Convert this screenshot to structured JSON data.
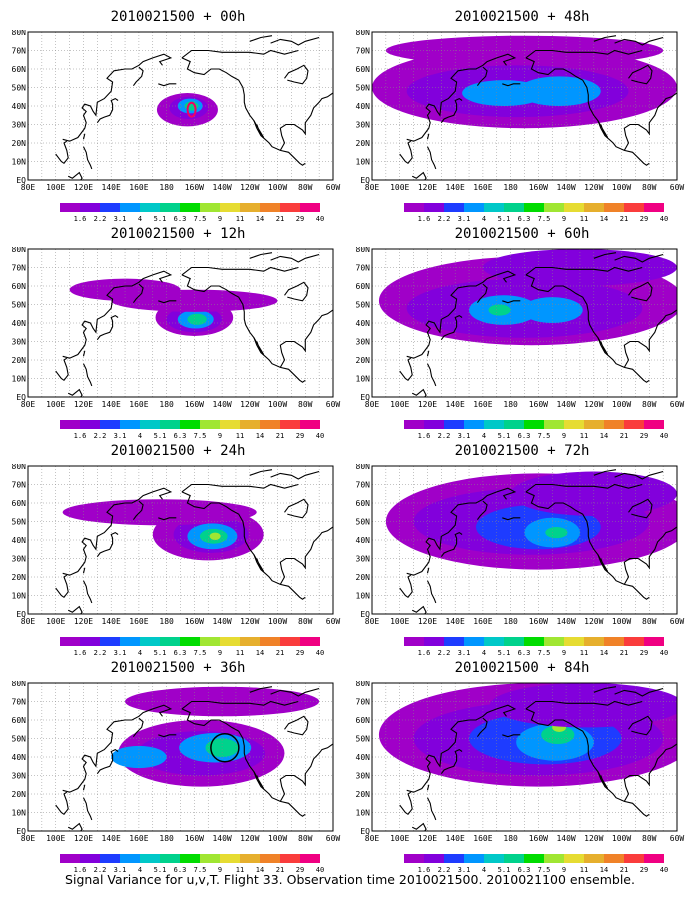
{
  "panels": [
    {
      "title": "2010021500 + 00h",
      "lead": 0
    },
    {
      "title": "2010021500 + 48h",
      "lead": 48
    },
    {
      "title": "2010021500 + 12h",
      "lead": 12
    },
    {
      "title": "2010021500 + 60h",
      "lead": 60
    },
    {
      "title": "2010021500 + 24h",
      "lead": 24
    },
    {
      "title": "2010021500 + 72h",
      "lead": 72
    },
    {
      "title": "2010021500 + 36h",
      "lead": 36
    },
    {
      "title": "2010021500 + 84h",
      "lead": 84
    }
  ],
  "map": {
    "lon_labels": [
      "80E",
      "100E",
      "120E",
      "140E",
      "160E",
      "180",
      "160W",
      "140W",
      "120W",
      "100W",
      "80W",
      "60W"
    ],
    "lat_labels": [
      "EQ",
      "10N",
      "20N",
      "30N",
      "40N",
      "50N",
      "60N",
      "70N",
      "80N"
    ],
    "lon_range": [
      80,
      300
    ],
    "lat_range": [
      0,
      80
    ]
  },
  "colorbar": {
    "labels": [
      "1.6",
      "2.2",
      "3.1",
      "4",
      "5.1",
      "6.3",
      "7.5",
      "9",
      "11",
      "14",
      "21",
      "29",
      "40"
    ],
    "colors": [
      "#a000c8",
      "#8200dc",
      "#1e3cff",
      "#0096ff",
      "#00c8c8",
      "#00d28c",
      "#00dc00",
      "#a0e632",
      "#e6dc32",
      "#e6af2d",
      "#f08228",
      "#fa3c3c",
      "#f00082"
    ]
  },
  "footer": "Signal Variance for u,v,T. Flight 33. Observation time 2010021500. 2010021100 ensemble."
}
